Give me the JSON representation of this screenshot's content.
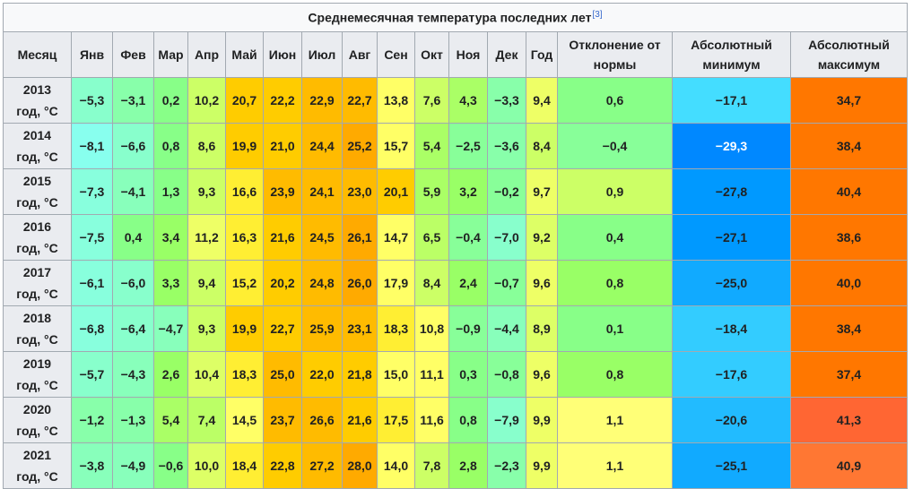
{
  "chart_data": {
    "type": "table",
    "title": "Среднемесячная температура последних лет",
    "title_ref": "[3]",
    "columns": [
      "Месяц",
      "Янв",
      "Фев",
      "Мар",
      "Апр",
      "Май",
      "Июн",
      "Июл",
      "Авг",
      "Сен",
      "Окт",
      "Ноя",
      "Дек",
      "Год",
      "Отклонение от нормы",
      "Абсолютный минимум",
      "Абсолютный максимум"
    ],
    "rows": [
      {
        "label": "2013 год, °C",
        "values": [
          "−5,3",
          "−3,1",
          "0,2",
          "10,2",
          "20,7",
          "22,2",
          "22,9",
          "22,7",
          "13,8",
          "7,6",
          "4,3",
          "−3,3",
          "9,4",
          "0,6",
          "−17,1",
          "34,7"
        ]
      },
      {
        "label": "2014 год, °C",
        "values": [
          "−8,1",
          "−6,6",
          "0,8",
          "8,6",
          "19,9",
          "21,0",
          "24,4",
          "25,2",
          "15,7",
          "5,4",
          "−2,5",
          "−3,6",
          "8,4",
          "−0,4",
          "−29,3",
          "38,4"
        ]
      },
      {
        "label": "2015 год, °C",
        "values": [
          "−7,3",
          "−4,1",
          "1,3",
          "9,3",
          "16,6",
          "23,9",
          "24,1",
          "23,0",
          "20,1",
          "5,9",
          "3,2",
          "−0,2",
          "9,7",
          "0,9",
          "−27,8",
          "40,4"
        ]
      },
      {
        "label": "2016 год, °C",
        "values": [
          "−7,5",
          "0,4",
          "3,4",
          "11,2",
          "16,3",
          "21,6",
          "24,5",
          "26,1",
          "14,7",
          "6,5",
          "−0,4",
          "−7,0",
          "9,2",
          "0,4",
          "−27,1",
          "38,6"
        ]
      },
      {
        "label": "2017 год, °C",
        "values": [
          "−6,1",
          "−6,0",
          "3,3",
          "9,4",
          "15,2",
          "20,2",
          "24,8",
          "26,0",
          "17,9",
          "8,4",
          "2,4",
          "−0,7",
          "9,6",
          "0,8",
          "−25,0",
          "40,0"
        ]
      },
      {
        "label": "2018 год, °C",
        "values": [
          "−6,8",
          "−6,4",
          "−4,7",
          "9,3",
          "19,9",
          "22,7",
          "25,9",
          "23,1",
          "18,3",
          "10,8",
          "−0,9",
          "−4,4",
          "8,9",
          "0,1",
          "−18,4",
          "38,4"
        ]
      },
      {
        "label": "2019 год, °C",
        "values": [
          "−5,7",
          "−4,3",
          "2,6",
          "10,4",
          "18,3",
          "25,0",
          "22,0",
          "21,8",
          "15,0",
          "11,1",
          "0,3",
          "−0,8",
          "9,6",
          "0,8",
          "−17,6",
          "37,4"
        ]
      },
      {
        "label": "2020 год, °C",
        "values": [
          "−1,2",
          "−1,3",
          "5,4",
          "7,4",
          "14,5",
          "23,7",
          "26,6",
          "21,6",
          "17,5",
          "11,6",
          "0,8",
          "−7,9",
          "9,9",
          "1,1",
          "−20,6",
          "41,3"
        ]
      },
      {
        "label": "2021 год, °C",
        "values": [
          "−3,8",
          "−4,9",
          "−0,6",
          "10,0",
          "18,4",
          "22,8",
          "27,2",
          "28,0",
          "14,0",
          "7,8",
          "2,8",
          "−2,3",
          "9,9",
          "1,1",
          "−25,1",
          "40,9"
        ]
      }
    ],
    "cell_colors": [
      [
        "#88ffcc",
        "#88ffaa",
        "#88ff88",
        "#ccff66",
        "#ffcc00",
        "#ffcc00",
        "#ffbb00",
        "#ffbb00",
        "#ffff66",
        "#ccff66",
        "#aaff66",
        "#88ffaa",
        "#eeff66",
        "#88ff88",
        "#44ddff",
        "#ff7700"
      ],
      [
        "#88ffee",
        "#88ffcc",
        "#88ff88",
        "#ccff66",
        "#ffcc00",
        "#ffcc00",
        "#ffbb00",
        "#ffaa00",
        "#ffff66",
        "#aaff66",
        "#88ff99",
        "#88ffaa",
        "#ccff66",
        "#88ff99",
        "#0088ff",
        "#ff7700"
      ],
      [
        "#88ffdd",
        "#88ffbb",
        "#88ff88",
        "#ccff66",
        "#ffee33",
        "#ffbb00",
        "#ffbb00",
        "#ffbb00",
        "#ffcc00",
        "#aaff66",
        "#99ff66",
        "#88ff99",
        "#eeff66",
        "#ccff66",
        "#0099ff",
        "#ff7700"
      ],
      [
        "#88ffdd",
        "#88ff88",
        "#99ff66",
        "#eeff66",
        "#ffee33",
        "#ffcc00",
        "#ffbb00",
        "#ffaa00",
        "#ffff66",
        "#bbff66",
        "#88ff99",
        "#88ffcc",
        "#ddff66",
        "#88ff88",
        "#0099ff",
        "#ff7700"
      ],
      [
        "#88ffdd",
        "#88ffcc",
        "#99ff66",
        "#ccff66",
        "#ffee33",
        "#ffcc00",
        "#ffbb00",
        "#ffaa00",
        "#ffff66",
        "#ccff66",
        "#99ff66",
        "#88ff99",
        "#eeff66",
        "#99ff66",
        "#11aaff",
        "#ff7700"
      ],
      [
        "#88ffdd",
        "#88ffcc",
        "#88ffbb",
        "#ccff66",
        "#ffcc00",
        "#ffcc00",
        "#ffbb00",
        "#ffbb00",
        "#ffee33",
        "#ffff66",
        "#88ff99",
        "#88ffbb",
        "#ddff66",
        "#88ff88",
        "#33ccff",
        "#ff7700"
      ],
      [
        "#88ffcc",
        "#88ffbb",
        "#99ff66",
        "#ddff66",
        "#ffee33",
        "#ffbb00",
        "#ffcc00",
        "#ffcc00",
        "#ffff66",
        "#ffff66",
        "#88ff88",
        "#88ff99",
        "#eeff66",
        "#99ff66",
        "#33ccff",
        "#ff7700"
      ],
      [
        "#88ffaa",
        "#88ffaa",
        "#aaff66",
        "#bbff66",
        "#ffff66",
        "#ffbb00",
        "#ffbb00",
        "#ffcc00",
        "#ffee33",
        "#ffff66",
        "#88ff88",
        "#88ffcc",
        "#eeff66",
        "#ffff77",
        "#22bbff",
        "#ff6633"
      ],
      [
        "#88ffbb",
        "#88ffbb",
        "#88ff88",
        "#ddff66",
        "#ffee33",
        "#ffcc00",
        "#ffbb00",
        "#ffaa00",
        "#ffff66",
        "#ccff66",
        "#99ff66",
        "#88ffaa",
        "#eeff66",
        "#ffff77",
        "#11aaff",
        "#ff7733"
      ]
    ]
  }
}
